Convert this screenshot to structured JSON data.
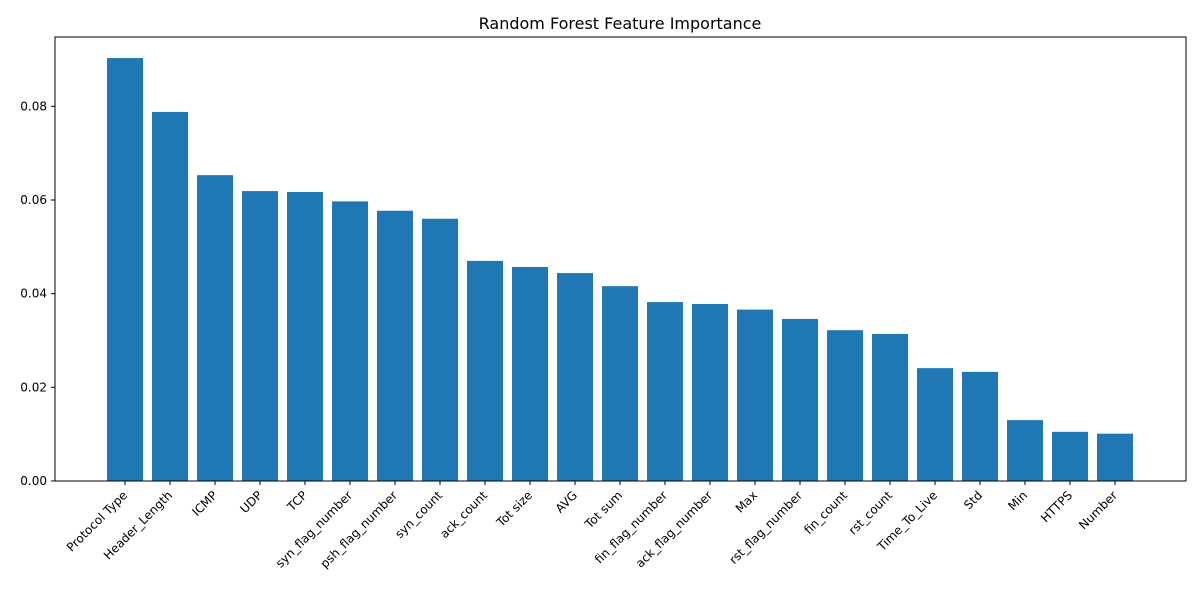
{
  "chart_data": {
    "type": "bar",
    "title": "Random Forest Feature Importance",
    "xlabel": "",
    "ylabel": "",
    "categories": [
      "Protocol Type",
      "Header_Length",
      "ICMP",
      "UDP",
      "TCP",
      "syn_flag_number",
      "psh_flag_number",
      "syn_count",
      "ack_count",
      "Tot size",
      "AVG",
      "Tot sum",
      "fin_flag_number",
      "ack_flag_number",
      "Max",
      "rst_flag_number",
      "fin_count",
      "rst_count",
      "Time_To_Live",
      "Std",
      "Min",
      "HTTPS",
      "Number"
    ],
    "values": [
      0.0903,
      0.0788,
      0.0653,
      0.0619,
      0.0617,
      0.0597,
      0.0577,
      0.056,
      0.047,
      0.0457,
      0.0444,
      0.0416,
      0.0382,
      0.0378,
      0.0366,
      0.0346,
      0.0322,
      0.0314,
      0.0241,
      0.0233,
      0.013,
      0.0105,
      0.0101
    ],
    "ylim": [
      0,
      0.0948
    ],
    "yticks": [
      0.0,
      0.02,
      0.04,
      0.06,
      0.08
    ],
    "ytick_labels": [
      "0.00",
      "0.02",
      "0.04",
      "0.06",
      "0.08"
    ],
    "bar_color": "#1f77b4",
    "grid": false,
    "legend": "none"
  }
}
